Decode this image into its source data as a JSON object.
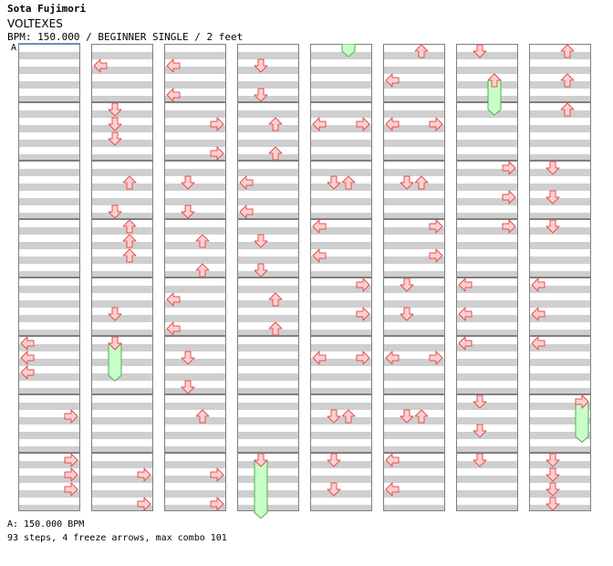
{
  "header": {
    "artist": "Sota Fujimori",
    "title": "VOLTEXES",
    "info": "BPM: 150.000 / BEGINNER SINGLE / 2 feet"
  },
  "bpm_marker": "A",
  "footer": {
    "bpm_line": "A: 150.000 BPM",
    "stats": "93 steps, 4 freeze arrows, max combo 101"
  },
  "colors": {
    "arrow_fill": "#ffd0d0",
    "arrow_stroke": "#e05050",
    "freeze_fill": "#c8ffc8",
    "freeze_stroke": "#4caf50",
    "lane_light": "#ffffff",
    "lane_dark": "#cfcfcf"
  },
  "chart": {
    "columns": 8,
    "rows_per_column": 8,
    "notes": [
      {
        "c": 0,
        "r": 5,
        "b": 0,
        "d": "L"
      },
      {
        "c": 0,
        "r": 5,
        "b": 1,
        "d": "L"
      },
      {
        "c": 0,
        "r": 5,
        "b": 2,
        "d": "L"
      },
      {
        "c": 0,
        "r": 6,
        "b": 1,
        "d": "R"
      },
      {
        "c": 0,
        "r": 7,
        "b": 0,
        "d": "R"
      },
      {
        "c": 0,
        "r": 7,
        "b": 1,
        "d": "R"
      },
      {
        "c": 0,
        "r": 7,
        "b": 2,
        "d": "R"
      },
      {
        "c": 1,
        "r": 0,
        "b": 1,
        "d": "L"
      },
      {
        "c": 1,
        "r": 1,
        "b": 0,
        "d": "D"
      },
      {
        "c": 1,
        "r": 1,
        "b": 1,
        "d": "D"
      },
      {
        "c": 1,
        "r": 1,
        "b": 2,
        "d": "D"
      },
      {
        "c": 1,
        "r": 2,
        "b": 1,
        "d": "U"
      },
      {
        "c": 1,
        "r": 2,
        "b": 3,
        "d": "D"
      },
      {
        "c": 1,
        "r": 3,
        "b": 0,
        "d": "U"
      },
      {
        "c": 1,
        "r": 3,
        "b": 1,
        "d": "U"
      },
      {
        "c": 1,
        "r": 3,
        "b": 2,
        "d": "U"
      },
      {
        "c": 1,
        "r": 4,
        "b": 2,
        "d": "D"
      },
      {
        "c": 1,
        "r": 5,
        "b": 0,
        "d": "D"
      },
      {
        "c": 1,
        "r": 7,
        "b": 1,
        "d": "R"
      },
      {
        "c": 1,
        "r": 7,
        "b": 3,
        "d": "R"
      },
      {
        "c": 2,
        "r": 0,
        "b": 1,
        "d": "L"
      },
      {
        "c": 2,
        "r": 0,
        "b": 3,
        "d": "L"
      },
      {
        "c": 2,
        "r": 1,
        "b": 1,
        "d": "R"
      },
      {
        "c": 2,
        "r": 1,
        "b": 3,
        "d": "R"
      },
      {
        "c": 2,
        "r": 2,
        "b": 1,
        "d": "D"
      },
      {
        "c": 2,
        "r": 2,
        "b": 3,
        "d": "D"
      },
      {
        "c": 2,
        "r": 3,
        "b": 1,
        "d": "U"
      },
      {
        "c": 2,
        "r": 3,
        "b": 3,
        "d": "U"
      },
      {
        "c": 2,
        "r": 4,
        "b": 1,
        "d": "L"
      },
      {
        "c": 2,
        "r": 4,
        "b": 3,
        "d": "L"
      },
      {
        "c": 2,
        "r": 5,
        "b": 1,
        "d": "D"
      },
      {
        "c": 2,
        "r": 5,
        "b": 3,
        "d": "D"
      },
      {
        "c": 2,
        "r": 6,
        "b": 1,
        "d": "U"
      },
      {
        "c": 2,
        "r": 7,
        "b": 1,
        "d": "R"
      },
      {
        "c": 2,
        "r": 7,
        "b": 3,
        "d": "R"
      },
      {
        "c": 3,
        "r": 0,
        "b": 1,
        "d": "D"
      },
      {
        "c": 3,
        "r": 0,
        "b": 3,
        "d": "D"
      },
      {
        "c": 3,
        "r": 1,
        "b": 1,
        "d": "U"
      },
      {
        "c": 3,
        "r": 1,
        "b": 3,
        "d": "U"
      },
      {
        "c": 3,
        "r": 2,
        "b": 1,
        "d": "L"
      },
      {
        "c": 3,
        "r": 2,
        "b": 3,
        "d": "L"
      },
      {
        "c": 3,
        "r": 3,
        "b": 1,
        "d": "D"
      },
      {
        "c": 3,
        "r": 3,
        "b": 3,
        "d": "D"
      },
      {
        "c": 3,
        "r": 4,
        "b": 1,
        "d": "U"
      },
      {
        "c": 3,
        "r": 4,
        "b": 3,
        "d": "U"
      },
      {
        "c": 3,
        "r": 7,
        "b": 0,
        "d": "D"
      },
      {
        "c": 4,
        "r": 1,
        "b": 1,
        "d": "L"
      },
      {
        "c": 4,
        "r": 1,
        "b": 1,
        "d": "R"
      },
      {
        "c": 4,
        "r": 2,
        "b": 1,
        "d": "D"
      },
      {
        "c": 4,
        "r": 2,
        "b": 1,
        "d": "U"
      },
      {
        "c": 4,
        "r": 3,
        "b": 0,
        "d": "L"
      },
      {
        "c": 4,
        "r": 3,
        "b": 2,
        "d": "L"
      },
      {
        "c": 4,
        "r": 4,
        "b": 0,
        "d": "R"
      },
      {
        "c": 4,
        "r": 4,
        "b": 2,
        "d": "R"
      },
      {
        "c": 4,
        "r": 5,
        "b": 1,
        "d": "L"
      },
      {
        "c": 4,
        "r": 5,
        "b": 1,
        "d": "R"
      },
      {
        "c": 4,
        "r": 6,
        "b": 1,
        "d": "D"
      },
      {
        "c": 4,
        "r": 6,
        "b": 1,
        "d": "U"
      },
      {
        "c": 4,
        "r": 7,
        "b": 0,
        "d": "D"
      },
      {
        "c": 4,
        "r": 7,
        "b": 2,
        "d": "D"
      },
      {
        "c": 5,
        "r": 0,
        "b": 0,
        "d": "U"
      },
      {
        "c": 5,
        "r": 0,
        "b": 2,
        "d": "L"
      },
      {
        "c": 5,
        "r": 1,
        "b": 1,
        "d": "L"
      },
      {
        "c": 5,
        "r": 1,
        "b": 1,
        "d": "R"
      },
      {
        "c": 5,
        "r": 2,
        "b": 1,
        "d": "D"
      },
      {
        "c": 5,
        "r": 2,
        "b": 1,
        "d": "U"
      },
      {
        "c": 5,
        "r": 3,
        "b": 0,
        "d": "R"
      },
      {
        "c": 5,
        "r": 3,
        "b": 2,
        "d": "R"
      },
      {
        "c": 5,
        "r": 4,
        "b": 0,
        "d": "D"
      },
      {
        "c": 5,
        "r": 4,
        "b": 2,
        "d": "D"
      },
      {
        "c": 5,
        "r": 5,
        "b": 1,
        "d": "L"
      },
      {
        "c": 5,
        "r": 5,
        "b": 1,
        "d": "R"
      },
      {
        "c": 5,
        "r": 6,
        "b": 1,
        "d": "D"
      },
      {
        "c": 5,
        "r": 6,
        "b": 1,
        "d": "U"
      },
      {
        "c": 5,
        "r": 7,
        "b": 0,
        "d": "L"
      },
      {
        "c": 5,
        "r": 7,
        "b": 2,
        "d": "L"
      },
      {
        "c": 6,
        "r": 0,
        "b": 0,
        "d": "D"
      },
      {
        "c": 6,
        "r": 0,
        "b": 2,
        "d": "U"
      },
      {
        "c": 6,
        "r": 2,
        "b": 0,
        "d": "R"
      },
      {
        "c": 6,
        "r": 2,
        "b": 2,
        "d": "R"
      },
      {
        "c": 6,
        "r": 3,
        "b": 0,
        "d": "R"
      },
      {
        "c": 6,
        "r": 4,
        "b": 0,
        "d": "L"
      },
      {
        "c": 6,
        "r": 4,
        "b": 2,
        "d": "L"
      },
      {
        "c": 6,
        "r": 5,
        "b": 0,
        "d": "L"
      },
      {
        "c": 6,
        "r": 6,
        "b": 0,
        "d": "D"
      },
      {
        "c": 6,
        "r": 6,
        "b": 2,
        "d": "D"
      },
      {
        "c": 6,
        "r": 7,
        "b": 0,
        "d": "D"
      },
      {
        "c": 7,
        "r": 0,
        "b": 0,
        "d": "U"
      },
      {
        "c": 7,
        "r": 0,
        "b": 2,
        "d": "U"
      },
      {
        "c": 7,
        "r": 1,
        "b": 0,
        "d": "U"
      },
      {
        "c": 7,
        "r": 2,
        "b": 0,
        "d": "D"
      },
      {
        "c": 7,
        "r": 2,
        "b": 2,
        "d": "D"
      },
      {
        "c": 7,
        "r": 3,
        "b": 0,
        "d": "D"
      },
      {
        "c": 7,
        "r": 4,
        "b": 0,
        "d": "L"
      },
      {
        "c": 7,
        "r": 4,
        "b": 2,
        "d": "L"
      },
      {
        "c": 7,
        "r": 5,
        "b": 0,
        "d": "L"
      },
      {
        "c": 7,
        "r": 6,
        "b": 0,
        "d": "R"
      },
      {
        "c": 7,
        "r": 7,
        "b": 0,
        "d": "D"
      },
      {
        "c": 7,
        "r": 7,
        "b": 1,
        "d": "D"
      },
      {
        "c": 7,
        "r": 7,
        "b": 2,
        "d": "D"
      },
      {
        "c": 7,
        "r": 7,
        "b": 3,
        "d": "D"
      }
    ],
    "note_lanes": {
      "L": 0,
      "D": 1,
      "U": 2,
      "R": 3
    },
    "freezes": [
      {
        "c": 1,
        "r": 5,
        "b": 0,
        "d": "D",
        "len": 2.2
      },
      {
        "c": 3,
        "r": 7,
        "b": 0,
        "d": "D",
        "len": 3.6
      },
      {
        "c": 4,
        "r": 0,
        "b": -0.5,
        "d": "U",
        "len": 0.5
      },
      {
        "c": 6,
        "r": 0,
        "b": 2,
        "d": "U",
        "len": 2
      },
      {
        "c": 7,
        "r": 6,
        "b": 0,
        "d": "R",
        "len": 2.4
      }
    ]
  }
}
